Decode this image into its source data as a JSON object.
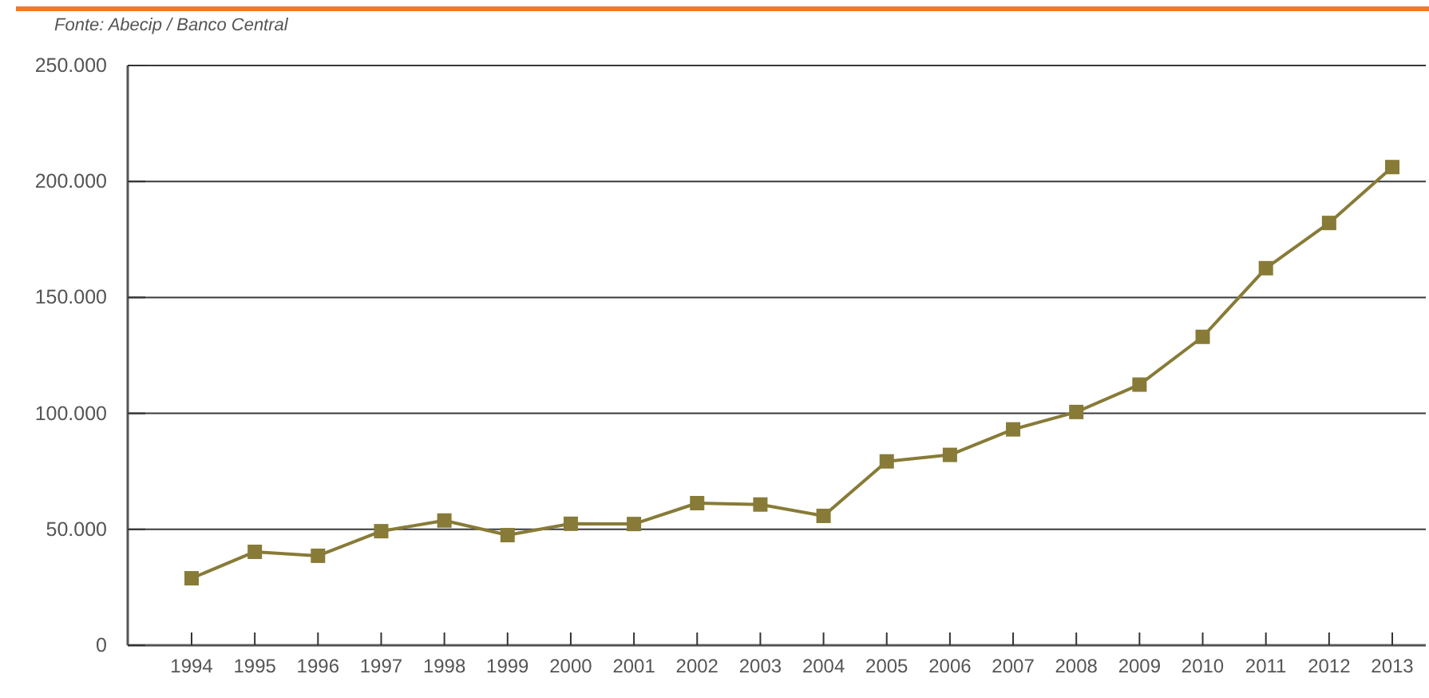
{
  "chart_data": {
    "type": "line",
    "categories": [
      "1994",
      "1995",
      "1996",
      "1997",
      "1998",
      "1999",
      "2000",
      "2001",
      "2002",
      "2003",
      "2004",
      "2005",
      "2006",
      "2007",
      "2008",
      "2009",
      "2010",
      "2011",
      "2012",
      "2013"
    ],
    "series": [
      {
        "color": "#877b37",
        "values": [
          28900,
          40300,
          38600,
          49200,
          53800,
          47500,
          52400,
          52300,
          61300,
          60700,
          55800,
          79300,
          82100,
          93100,
          100600,
          112400,
          133000,
          162600,
          182100,
          206200
        ]
      }
    ],
    "ylim": [
      0,
      250000
    ],
    "yticks": [
      {
        "value": 0,
        "label": "0"
      },
      {
        "value": 50000,
        "label": "50.000"
      },
      {
        "value": 100000,
        "label": "100.000"
      },
      {
        "value": 150000,
        "label": "150.000"
      },
      {
        "value": 200000,
        "label": "200.000"
      },
      {
        "value": 250000,
        "label": "250.000"
      }
    ],
    "grid": "y",
    "marker": "square",
    "line_style": "solid",
    "annotations": [
      "Fonte: Abecip / Banco Central"
    ]
  }
}
